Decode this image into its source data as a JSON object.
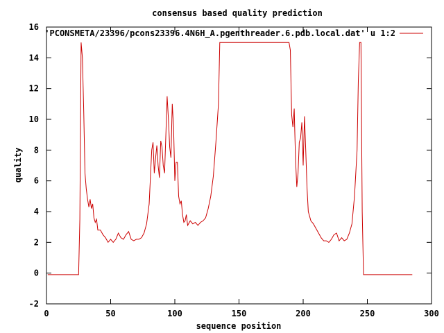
{
  "chart_data": {
    "type": "line",
    "title": "consensus based quality prediction",
    "xlabel": "sequence position",
    "ylabel": "quality",
    "xlim": [
      0,
      300
    ],
    "ylim": [
      -2,
      16
    ],
    "xticks": [
      "0",
      "50",
      "100",
      "150",
      "200",
      "250",
      "300"
    ],
    "yticks": [
      "-2",
      "0",
      "2",
      "4",
      "6",
      "8",
      "10",
      "12",
      "14",
      "16"
    ],
    "grid": false,
    "legend_position": "top-right",
    "series": [
      {
        "name": "'PCONSMETA/23396/pcons23396.4N6H_A.pgenthreader.6.pdb.local.dat' u 1:2",
        "color": "#cc0000",
        "x": [
          1,
          25,
          26,
          27,
          28,
          29,
          30,
          31,
          32,
          33,
          34,
          35,
          36,
          37,
          38,
          39,
          40,
          42,
          44,
          46,
          48,
          50,
          52,
          54,
          56,
          58,
          60,
          62,
          64,
          66,
          68,
          70,
          72,
          74,
          76,
          78,
          80,
          82,
          83,
          84,
          85,
          86,
          87,
          88,
          89,
          90,
          91,
          92,
          93,
          94,
          95,
          96,
          97,
          98,
          99,
          100,
          101,
          102,
          103,
          104,
          105,
          106,
          107,
          108,
          109,
          110,
          112,
          114,
          116,
          118,
          120,
          122,
          124,
          126,
          128,
          130,
          132,
          134,
          135,
          150,
          170,
          189,
          190,
          191,
          192,
          193,
          194,
          195,
          196,
          197,
          198,
          199,
          200,
          201,
          202,
          203,
          204,
          206,
          208,
          210,
          212,
          214,
          216,
          218,
          220,
          222,
          224,
          226,
          228,
          230,
          232,
          234,
          236,
          238,
          240,
          242,
          243,
          244,
          245,
          246,
          247,
          285
        ],
        "values": [
          -0.1,
          -0.1,
          3.5,
          15.0,
          14.0,
          10.5,
          6.5,
          5.5,
          4.8,
          4.3,
          4.8,
          4.2,
          4.5,
          3.6,
          3.3,
          3.5,
          2.8,
          2.8,
          2.5,
          2.3,
          2.0,
          2.2,
          2.0,
          2.2,
          2.6,
          2.3,
          2.2,
          2.5,
          2.7,
          2.2,
          2.1,
          2.2,
          2.2,
          2.3,
          2.6,
          3.2,
          4.5,
          8.0,
          8.5,
          6.5,
          7.5,
          8.3,
          7.0,
          6.2,
          8.6,
          8.2,
          7.0,
          6.5,
          9.0,
          11.5,
          10.0,
          8.2,
          7.5,
          11.0,
          9.5,
          6.0,
          7.2,
          7.2,
          5.0,
          4.5,
          4.7,
          3.8,
          3.3,
          3.4,
          3.8,
          3.1,
          3.4,
          3.2,
          3.3,
          3.1,
          3.3,
          3.4,
          3.6,
          4.2,
          5.0,
          6.3,
          8.5,
          11.0,
          15.0,
          15.0,
          15.0,
          15.0,
          14.5,
          10.3,
          9.5,
          10.7,
          7.5,
          5.6,
          6.5,
          8.5,
          8.8,
          9.8,
          7.0,
          10.2,
          8.0,
          5.5,
          4.0,
          3.4,
          3.2,
          2.9,
          2.6,
          2.3,
          2.1,
          2.1,
          2.0,
          2.2,
          2.5,
          2.6,
          2.1,
          2.3,
          2.1,
          2.2,
          2.6,
          3.2,
          5.0,
          8.0,
          12.5,
          15.0,
          15.0,
          4.0,
          -0.1,
          -0.1
        ]
      }
    ]
  }
}
